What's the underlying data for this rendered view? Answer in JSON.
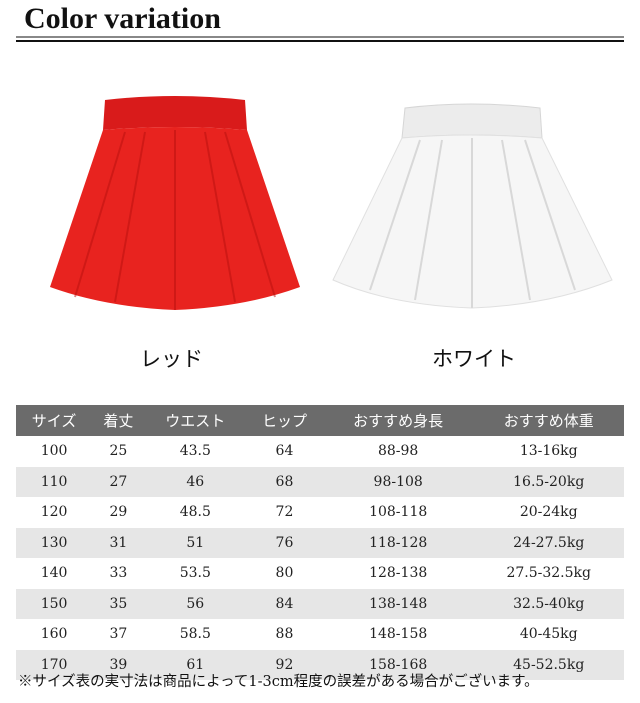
{
  "header": {
    "title": "Color variation"
  },
  "colors": [
    {
      "name": "レッド",
      "hex": "#e8201f"
    },
    {
      "name": "ホワイト",
      "hex": "#f4f4f4"
    }
  ],
  "size_table": {
    "headers": [
      "サイズ",
      "着丈",
      "ウエスト",
      "ヒップ",
      "おすすめ身長",
      "おすすめ体重"
    ],
    "rows": [
      [
        "100",
        "25",
        "43.5",
        "64",
        "88-98",
        "13-16kg"
      ],
      [
        "110",
        "27",
        "46",
        "68",
        "98-108",
        "16.5-20kg"
      ],
      [
        "120",
        "29",
        "48.5",
        "72",
        "108-118",
        "20-24kg"
      ],
      [
        "130",
        "31",
        "51",
        "76",
        "118-128",
        "24-27.5kg"
      ],
      [
        "140",
        "33",
        "53.5",
        "80",
        "128-138",
        "27.5-32.5kg"
      ],
      [
        "150",
        "35",
        "56",
        "84",
        "138-148",
        "32.5-40kg"
      ],
      [
        "160",
        "37",
        "58.5",
        "88",
        "148-158",
        "40-45kg"
      ],
      [
        "170",
        "39",
        "61",
        "92",
        "158-168",
        "45-52.5kg"
      ]
    ],
    "header_bg": "#6b6b6b",
    "stripe_bg": "#e6e6e6"
  },
  "footnote": "※サイズ表の実寸法は商品によって1-3cm程度の誤差がある場合がございます。"
}
